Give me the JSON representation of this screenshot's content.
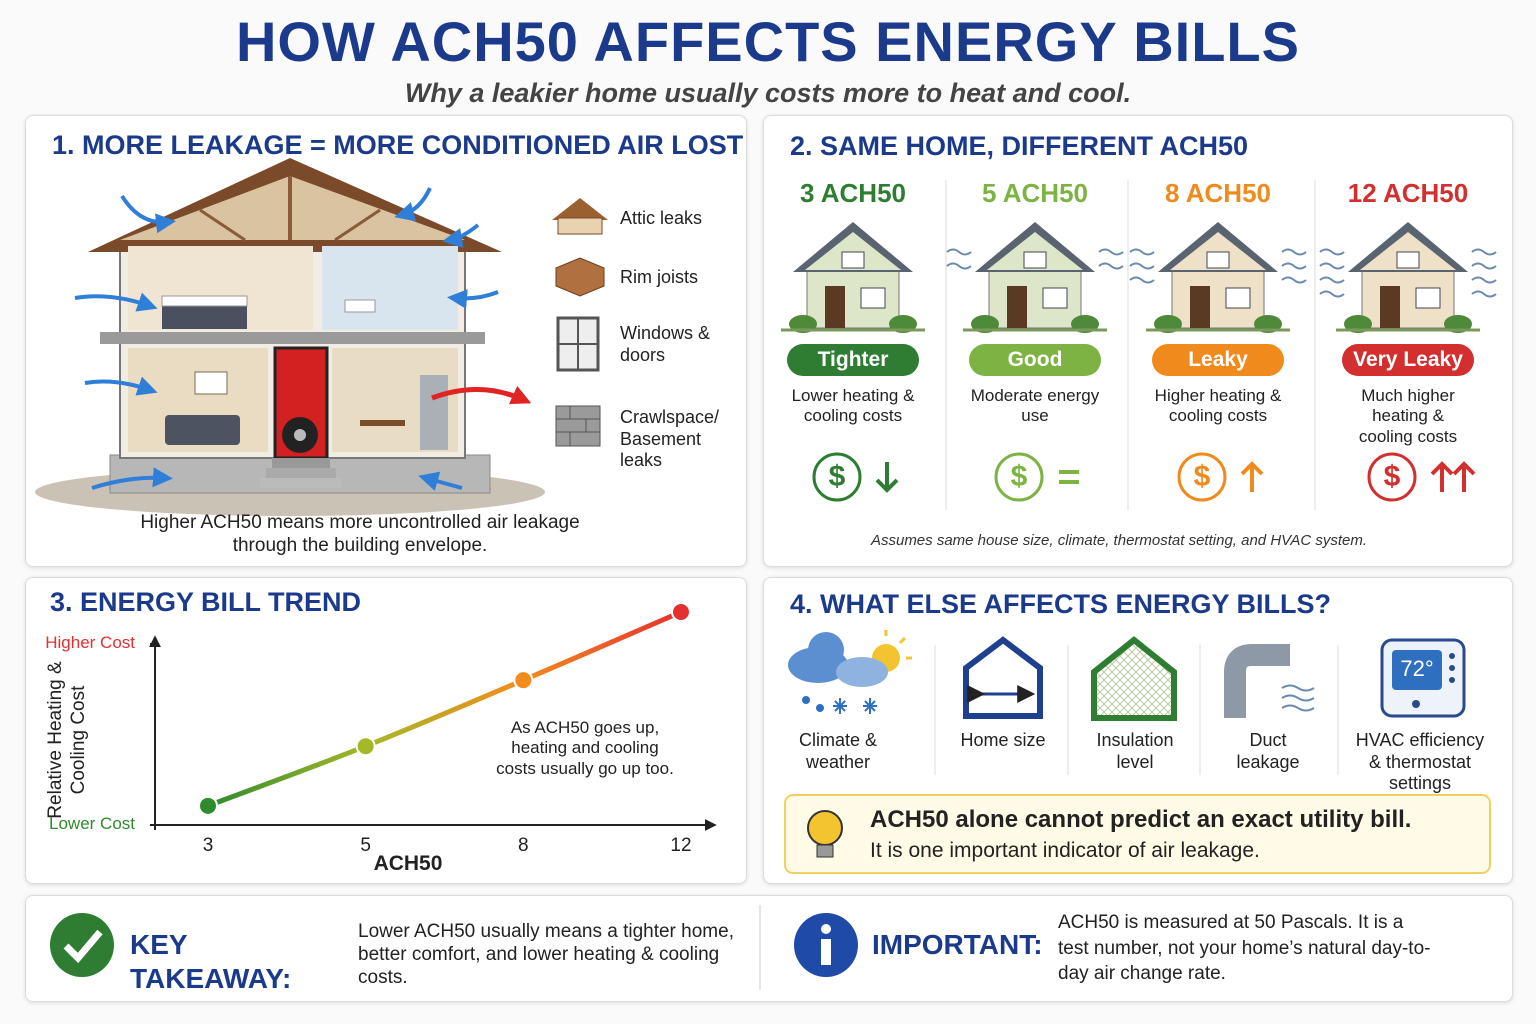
{
  "header": {
    "title": "HOW ACH50 AFFECTS ENERGY BILLS",
    "subtitle": "Why a leakier home usually costs more to heat and cool."
  },
  "leakage": {
    "title": "1. MORE LEAKAGE = MORE CONDITIONED AIR LOST",
    "sources": [
      "Attic leaks",
      "Rim joists",
      "Windows & doors",
      "Crawlspace/ Basement leaks"
    ],
    "caption": "Higher ACH50 means more uncontrolled air leakage through the building envelope."
  },
  "comparison": {
    "title": "2. SAME HOME, DIFFERENT ACH50",
    "levels": [
      {
        "label": "3 ACH50",
        "rating": "Tighter",
        "description": "Lower heating & cooling costs",
        "symbol": "$",
        "color": "#2e7d32"
      },
      {
        "label": "5 ACH50",
        "rating": "Good",
        "description": "Moderate energy use",
        "symbol": "$",
        "color": "#7cb342"
      },
      {
        "label": "8 ACH50",
        "rating": "Leaky",
        "description": "Higher heating & cooling costs",
        "symbol": "$",
        "color": "#f08a1c"
      },
      {
        "label": "12 ACH50",
        "rating": "Very Leaky",
        "description": "Much higher heating & cooling costs",
        "symbol": "$",
        "color": "#d32f2f"
      }
    ],
    "note": "Assumes same house size, climate, thermostat setting, and HVAC system."
  },
  "chart_data": {
    "type": "line",
    "title": "3. ENERGY BILL TREND",
    "x_label": "ACH50",
    "y_label": "Relative Heating & Cooling Cost",
    "categories": [
      "3",
      "5",
      "8",
      "12"
    ],
    "values": [
      9,
      37,
      68,
      100
    ],
    "colors": [
      "#2e8b2e",
      "#a5b82a",
      "#f28c1c",
      "#e53030"
    ],
    "ylim": [
      0,
      100
    ],
    "yticks": [
      {
        "value": 0,
        "label": "Lower Cost"
      },
      {
        "value": 85,
        "label": "Higher Cost"
      }
    ],
    "annotation": "As ACH50 goes up, heating and cooling costs usually go up too."
  },
  "factors": {
    "title": "4. WHAT ELSE AFFECTS ENERGY BILLS?",
    "items": [
      "Climate & weather",
      "Home size",
      "Insulation level",
      "Duct leakage",
      "HVAC efficiency & thermostat settings"
    ],
    "thermostat": "72°",
    "callout": {
      "heading": "ACH50 alone cannot predict an exact utility bill.",
      "text": "It is one important indicator of air leakage."
    }
  },
  "footer": {
    "takeaway": {
      "label": "KEY TAKEAWAY:",
      "text": "Lower ACH50 usually means a tighter home, better comfort, and lower heating & cooling costs."
    },
    "important": {
      "label": "IMPORTANT:",
      "text": "ACH50 is measured at 50 Pascals. It is a test number, not your home’s natural day-to-day air change rate."
    }
  }
}
